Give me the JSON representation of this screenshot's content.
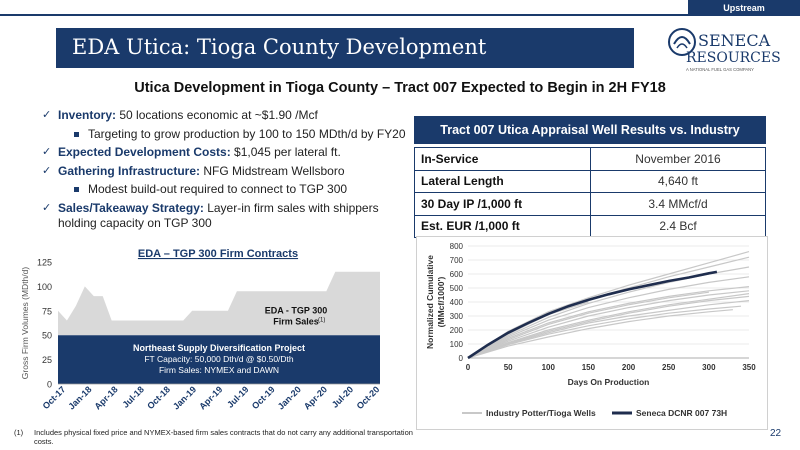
{
  "header": {
    "tab_label": "Upstream",
    "title": "EDA Utica: Tioga County Development",
    "subtitle": "Utica Development in Tioga County – Tract 007 Expected to Begin in 2H FY18"
  },
  "logo": {
    "line1": "SENECA",
    "line2": "RESOURCES",
    "tagline": "A NATIONAL FUEL GAS COMPANY"
  },
  "bullets": {
    "inventory_label": "Inventory:",
    "inventory_text": " 50 locations economic at ~$1.90 /Mcf",
    "inventory_sub": "Targeting to grow production by 100 to 150 MDth/d by FY20",
    "costs_label": "Expected Development Costs:",
    "costs_text": " $1,045 per lateral ft.",
    "gathering_label": "Gathering Infrastructure:",
    "gathering_text": " NFG Midstream Wellsboro",
    "gathering_sub": "Modest build-out required to connect to TGP 300",
    "sales_label": "Sales/Takeaway Strategy:",
    "sales_text": " Layer-in firm sales with shippers holding capacity on TGP 300"
  },
  "table": {
    "title": "Tract 007 Utica Appraisal Well Results vs. Industry",
    "rows": [
      {
        "label": "In-Service",
        "value": "November 2016"
      },
      {
        "label": "Lateral Length",
        "value": "4,640 ft"
      },
      {
        "label": "30 Day IP /1,000 ft",
        "value": "3.4 MMcf/d"
      },
      {
        "label": "Est. EUR /1,000 ft",
        "value": "2.4 Bcf"
      }
    ]
  },
  "chart_data": [
    {
      "type": "area",
      "title": "EDA – TGP 300 Firm Contracts",
      "ylabel": "Gross Firm Volumes (MDth/d)",
      "ylim": [
        0,
        125
      ],
      "yticks": [
        0,
        25,
        50,
        75,
        100,
        125
      ],
      "x_tick_labels": [
        "Oct-17",
        "Jan-18",
        "Apr-18",
        "Jul-18",
        "Oct-18",
        "Jan-19",
        "Apr-19",
        "Jul-19",
        "Oct-19",
        "Jan-20",
        "Apr-20",
        "Jul-20",
        "Oct-20"
      ],
      "series": [
        {
          "name": "Northeast Supply Diversification Project",
          "color": "#1a3a6b",
          "label_lines": [
            "Northeast Supply Diversification Project",
            "FT Capacity: 50,000 Dth/d @ $0.50/Dth",
            "Firm Sales: NYMEX and DAWN"
          ],
          "values": [
            50,
            50,
            50,
            50,
            50,
            50,
            50,
            50,
            50,
            50,
            50,
            50,
            50,
            50,
            50,
            50,
            50,
            50,
            50,
            50,
            50,
            50,
            50,
            50,
            50,
            50,
            50,
            50,
            50,
            50,
            50,
            50,
            50,
            50,
            50,
            50,
            50
          ]
        },
        {
          "name": "EDA - TGP 300 Firm Sales",
          "color": "#d9d9d9",
          "label_lines": [
            "EDA - TGP 300",
            "Firm Sales"
          ],
          "label_sup": "(1)",
          "values": [
            25,
            15,
            30,
            50,
            40,
            40,
            15,
            15,
            15,
            15,
            15,
            15,
            15,
            15,
            15,
            25,
            25,
            25,
            25,
            25,
            45,
            45,
            45,
            45,
            45,
            45,
            45,
            45,
            45,
            45,
            45,
            65,
            65,
            65,
            65,
            65,
            65
          ]
        }
      ]
    },
    {
      "type": "line",
      "xlabel": "Days On Production",
      "ylabel": "Normalized Cumulative (MMcf/1000')",
      "xlim": [
        0,
        350
      ],
      "ylim": [
        0,
        800
      ],
      "xticks": [
        0,
        50,
        100,
        150,
        200,
        250,
        300,
        350
      ],
      "yticks": [
        0,
        100,
        200,
        300,
        400,
        500,
        600,
        700,
        800
      ],
      "series": [
        {
          "name": "Industry Potter/Tioga Wells",
          "color": "#c8c8c8",
          "lines": [
            {
              "x": [
                0,
                50,
                100,
                150,
                200,
                250,
                300,
                350
              ],
              "y": [
                0,
                190,
                330,
                430,
                520,
                600,
                680,
                760
              ]
            },
            {
              "x": [
                0,
                50,
                100,
                150,
                200,
                250,
                300,
                350
              ],
              "y": [
                0,
                175,
                310,
                420,
                500,
                580,
                650,
                720
              ]
            },
            {
              "x": [
                0,
                50,
                100,
                150,
                200,
                250,
                300,
                350
              ],
              "y": [
                0,
                160,
                290,
                390,
                470,
                540,
                600,
                650
              ]
            },
            {
              "x": [
                0,
                50,
                100,
                150,
                200,
                250,
                300,
                350
              ],
              "y": [
                0,
                150,
                270,
                360,
                430,
                490,
                540,
                580
              ]
            },
            {
              "x": [
                0,
                50,
                100,
                150,
                200,
                250,
                300,
                350
              ],
              "y": [
                0,
                140,
                250,
                330,
                390,
                440,
                480,
                510
              ]
            },
            {
              "x": [
                0,
                50,
                100,
                150,
                200,
                250,
                300,
                350
              ],
              "y": [
                0,
                120,
                220,
                300,
                360,
                410,
                450,
                480
              ]
            },
            {
              "x": [
                0,
                50,
                100,
                150,
                200,
                250,
                300,
                350
              ],
              "y": [
                0,
                110,
                200,
                270,
                330,
                380,
                420,
                460
              ]
            },
            {
              "x": [
                0,
                50,
                100,
                150,
                200,
                250,
                300,
                350
              ],
              "y": [
                0,
                100,
                180,
                250,
                300,
                340,
                380,
                410
              ]
            },
            {
              "x": [
                0,
                50,
                100,
                150,
                200,
                250,
                300,
                340
              ],
              "y": [
                0,
                95,
                170,
                230,
                280,
                320,
                350,
                370
              ]
            },
            {
              "x": [
                0,
                50,
                100,
                150,
                200,
                250,
                300,
                330
              ],
              "y": [
                0,
                85,
                150,
                210,
                260,
                300,
                330,
                345
              ]
            },
            {
              "x": [
                0,
                50,
                100,
                150,
                200,
                250,
                300
              ],
              "y": [
                0,
                130,
                240,
                320,
                380,
                430,
                470
              ]
            },
            {
              "x": [
                0,
                50,
                100,
                150
              ],
              "y": [
                0,
                170,
                310,
                400
              ]
            },
            {
              "x": [
                0,
                50,
                100,
                150,
                200,
                250,
                300,
                350
              ],
              "y": [
                0,
                105,
                190,
                260,
                320,
                370,
                410,
                440
              ]
            }
          ]
        },
        {
          "name": "Seneca DCNR 007 73H",
          "color": "#1f2d4e",
          "x": [
            0,
            25,
            50,
            75,
            100,
            125,
            150,
            175,
            200,
            225,
            250,
            275,
            300,
            310
          ],
          "y": [
            0,
            95,
            180,
            250,
            315,
            370,
            415,
            455,
            490,
            520,
            550,
            575,
            605,
            615
          ]
        }
      ],
      "legend": "bottom"
    }
  ],
  "footnote": {
    "number": "(1)",
    "text": "Includes physical fixed price and NYMEX-based firm sales contracts that do not carry any additional transportation costs."
  },
  "page_number": "22"
}
